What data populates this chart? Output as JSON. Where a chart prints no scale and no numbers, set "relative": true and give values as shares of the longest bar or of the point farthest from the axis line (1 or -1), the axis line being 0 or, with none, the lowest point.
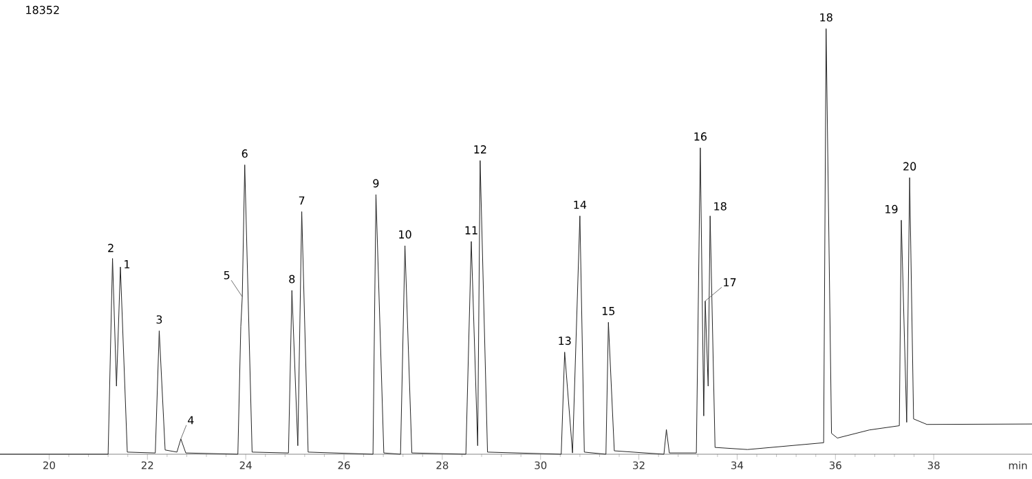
{
  "chart_data": {
    "type": "line",
    "relative": true,
    "xlabel": "min",
    "xlim": [
      19,
      40
    ],
    "xticks": [
      20,
      22,
      24,
      26,
      28,
      30,
      32,
      34,
      36,
      38
    ],
    "series": [
      {
        "color": "#222222",
        "x": [
          19,
          21.2,
          21.29,
          21.37,
          21.45,
          21.59,
          22.16,
          22.24,
          22.36,
          22.6,
          22.68,
          22.78,
          23.84,
          23.9,
          23.93,
          23.98,
          24.13,
          24.87,
          24.94,
          25.06,
          25.14,
          25.27,
          26.59,
          26.65,
          26.81,
          27.15,
          27.24,
          27.38,
          28.48,
          28.59,
          28.72,
          28.77,
          28.92,
          30.42,
          30.49,
          30.65,
          30.8,
          30.89,
          31.33,
          31.38,
          31.5,
          32.51,
          32.56,
          32.62,
          33.17,
          33.25,
          33.32,
          33.35,
          33.41,
          33.45,
          33.55,
          34.21,
          35.76,
          35.81,
          35.92,
          36.04,
          36.69,
          37.3,
          37.34,
          37.45,
          37.51,
          37.59,
          37.86,
          40
        ],
        "values": [
          0,
          0,
          0.46,
          0.16,
          0.44,
          0.005,
          0.003,
          0.29,
          0.01,
          0.005,
          0.036,
          0.003,
          0,
          0.3,
          0.37,
          0.68,
          0.005,
          0.003,
          0.385,
          0.02,
          0.57,
          0.005,
          0,
          0.61,
          0.003,
          0,
          0.49,
          0.003,
          0,
          0.5,
          0.02,
          0.69,
          0.005,
          0,
          0.24,
          0.003,
          0.56,
          0.005,
          0,
          0.31,
          0.008,
          0,
          0.058,
          0.003,
          0.003,
          0.72,
          0.09,
          0.36,
          0.16,
          0.56,
          0.016,
          0.011,
          0.027,
          1.0,
          0.049,
          0.038,
          0.057,
          0.067,
          0.55,
          0.075,
          0.65,
          0.083,
          0.07,
          0.071
        ]
      }
    ],
    "annotations": [
      {
        "text": "2",
        "x": 21.29,
        "y": 0.46
      },
      {
        "text": "1",
        "x": 21.45,
        "y": 0.44
      },
      {
        "text": "3",
        "x": 22.24,
        "y": 0.29
      },
      {
        "text": "4",
        "x": 22.68,
        "y": 0.036
      },
      {
        "text": "5",
        "x": 23.93,
        "y": 0.37
      },
      {
        "text": "6",
        "x": 23.98,
        "y": 0.68
      },
      {
        "text": "8",
        "x": 24.94,
        "y": 0.385
      },
      {
        "text": "7",
        "x": 25.14,
        "y": 0.57
      },
      {
        "text": "9",
        "x": 26.65,
        "y": 0.61
      },
      {
        "text": "10",
        "x": 27.24,
        "y": 0.49
      },
      {
        "text": "11",
        "x": 28.59,
        "y": 0.5
      },
      {
        "text": "12",
        "x": 28.77,
        "y": 0.69
      },
      {
        "text": "13",
        "x": 30.49,
        "y": 0.24
      },
      {
        "text": "14",
        "x": 30.8,
        "y": 0.56
      },
      {
        "text": "15",
        "x": 31.38,
        "y": 0.31
      },
      {
        "text": "16",
        "x": 33.25,
        "y": 0.72
      },
      {
        "text": "17",
        "x": 33.35,
        "y": 0.36
      },
      {
        "text": "18",
        "x": 33.45,
        "y": 0.56
      },
      {
        "text": "18",
        "x": 35.81,
        "y": 1.0
      },
      {
        "text": "19",
        "x": 37.34,
        "y": 0.55
      },
      {
        "text": "20",
        "x": 37.51,
        "y": 0.65
      },
      "18352"
    ]
  }
}
